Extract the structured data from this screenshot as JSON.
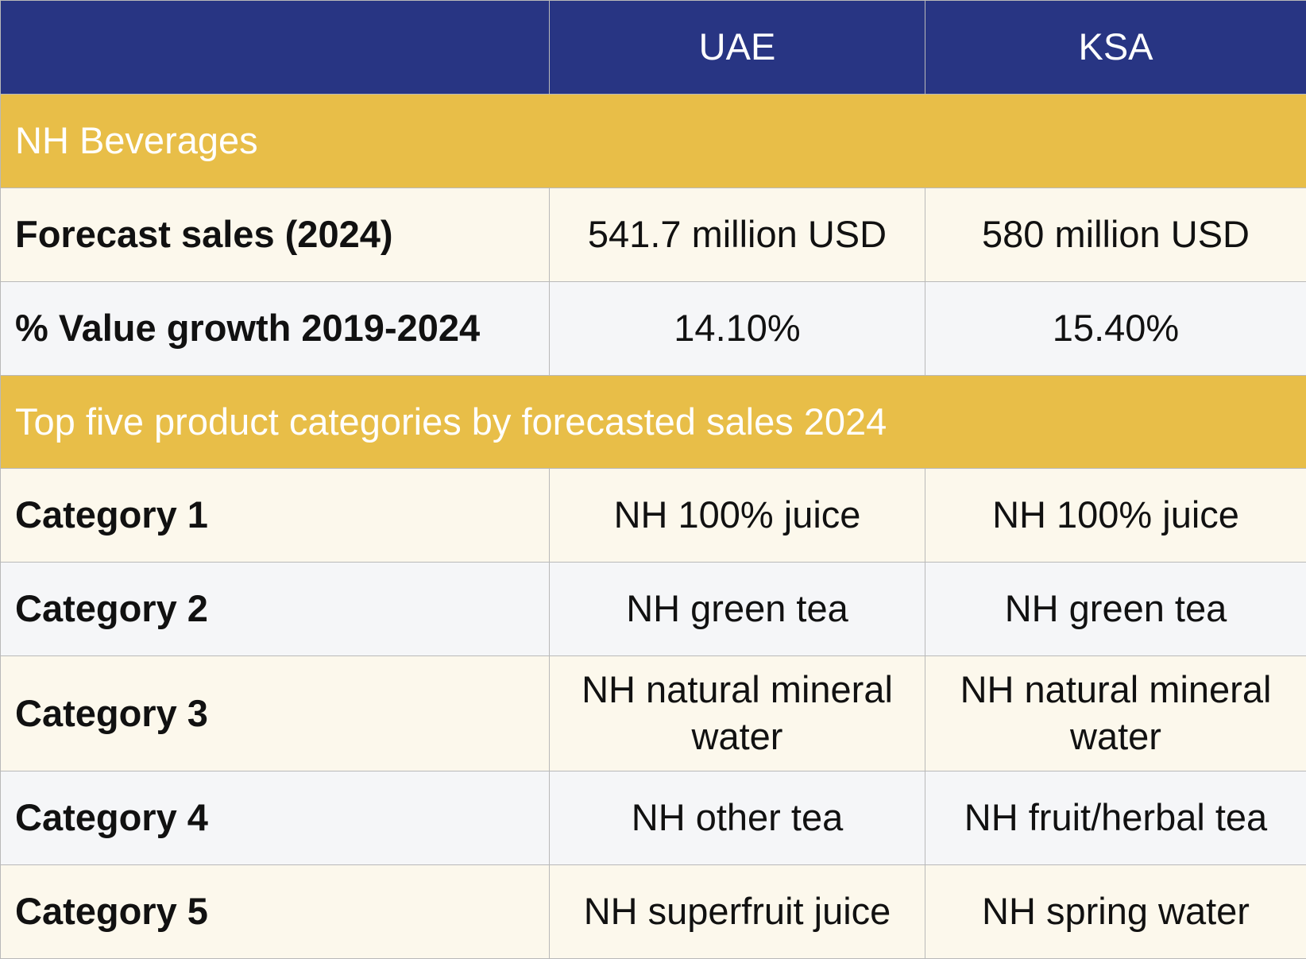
{
  "header": {
    "col0": "",
    "col1": "UAE",
    "col2": "KSA"
  },
  "section_beverages": "NH Beverages",
  "metrics": [
    {
      "label": "Forecast sales (2024)",
      "uae": "541.7 million USD",
      "ksa": "580 million USD"
    },
    {
      "label": "% Value growth 2019-2024",
      "uae": "14.10%",
      "ksa": "15.40%"
    }
  ],
  "section_categories": "Top five product categories by forecasted sales 2024",
  "categories": [
    {
      "label": "Category 1",
      "uae": "NH 100% juice",
      "ksa": "NH 100% juice"
    },
    {
      "label": "Category 2",
      "uae": "NH green tea",
      "ksa": "NH green tea"
    },
    {
      "label": "Category 3",
      "uae": "NH natural mineral water",
      "ksa": "NH natural mineral water"
    },
    {
      "label": "Category 4",
      "uae": "NH other tea",
      "ksa": "NH fruit/herbal tea"
    },
    {
      "label": "Category 5",
      "uae": "NH superfruit juice",
      "ksa": "NH spring water"
    }
  ],
  "colors": {
    "header_bg": "#283583",
    "section_bg": "#e8be48",
    "row_cream": "#fcf8ec",
    "row_grey": "#f5f6f8"
  }
}
